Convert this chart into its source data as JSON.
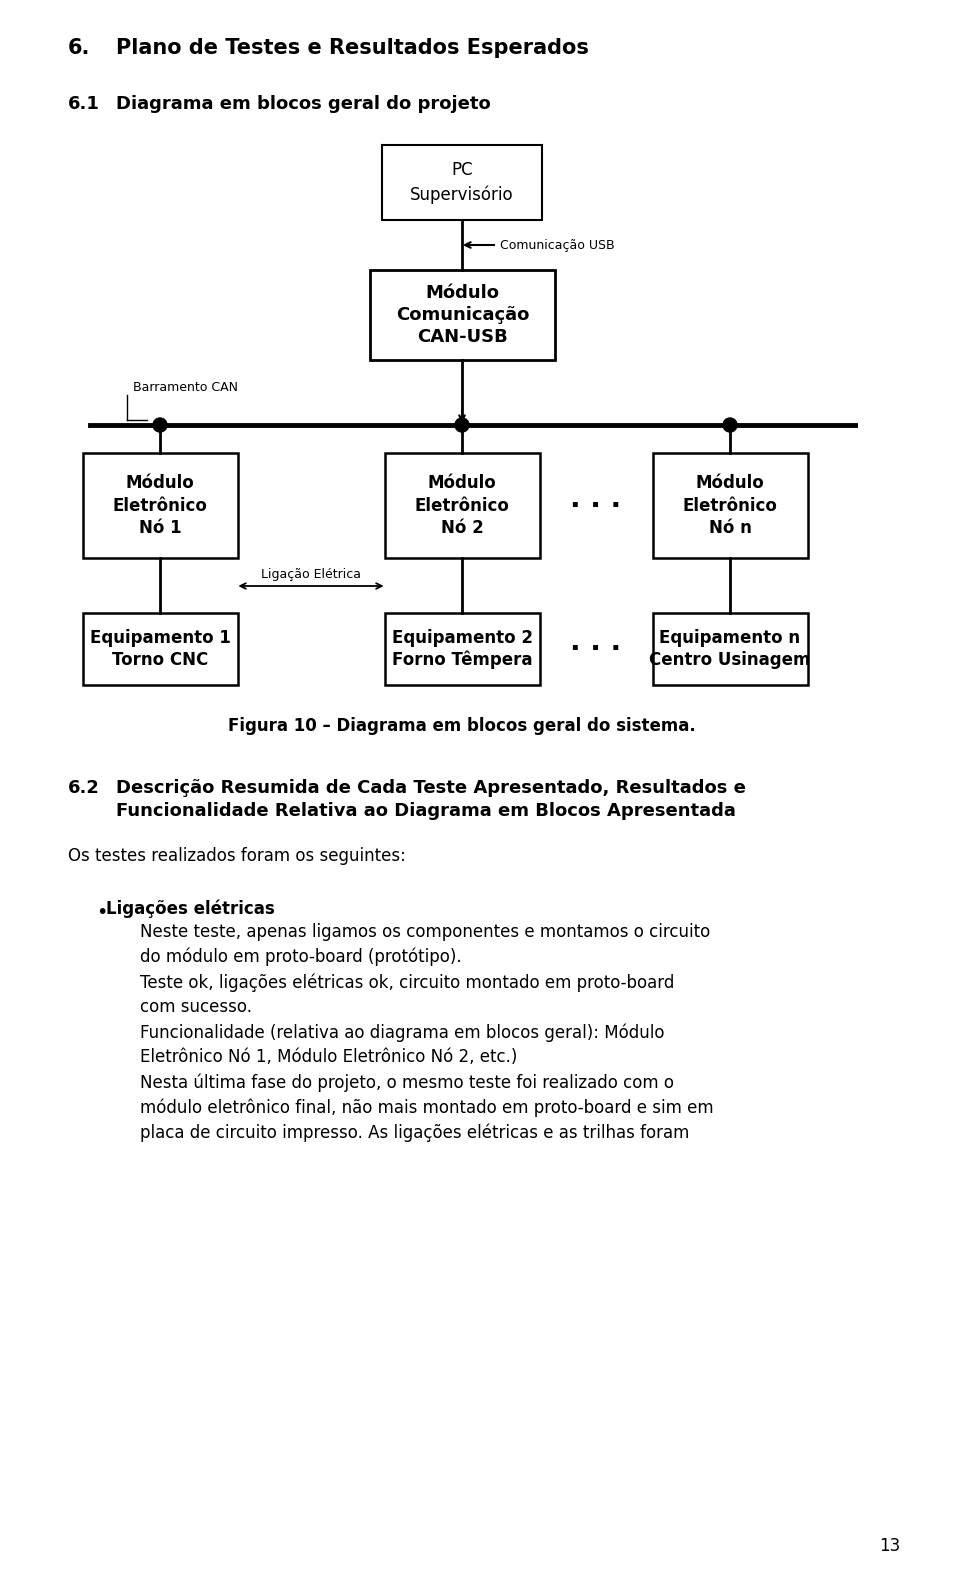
{
  "bg_color": "#ffffff",
  "page_width": 9.6,
  "page_height": 15.71,
  "heading1_text": "6.",
  "heading1_title": "Plano de Testes e Resultados Esperados",
  "heading2_text": "6.1",
  "heading2_title": "Diagrama em blocos geral do projeto",
  "fig_caption": "Figura 10 – Diagrama em blocos geral do sistema.",
  "heading3_text": "6.2",
  "heading3_title_line1": "Descrição Resumida de Cada Teste Apresentado, Resultados e",
  "heading3_title_line2": "Funcionalidade Relativa ao Diagrama em Blocos Apresentada",
  "para1": "Os testes realizados foram os seguintes:",
  "bullet_title": "Ligações elétricas",
  "bullet_text1": "Neste teste, apenas ligamos os componentes e montamos o circuito\ndo módulo em proto-board (protótipo).",
  "bullet_text2": "Teste ok, ligações elétricas ok, circuito montado em proto-board\ncom sucesso.",
  "bullet_text3": "Funcionalidade (relativa ao diagrama em blocos geral): Módulo\nEletrônico Nó 1, Módulo Eletrônico Nó 2, etc.)",
  "bullet_text4": "Nesta última fase do projeto, o mesmo teste foi realizado com o\nmódulo eletrônico final, não mais montado em proto-board e sim em\nplaca de circuito impresso. As ligações elétricas e as trilhas foram",
  "page_number": "13",
  "box_pc": "PC\nSupervisório",
  "box_modulo_com": "Módulo\nComunicação\nCAN-USB",
  "box_no1": "Módulo\nEletrônico\nNó 1",
  "box_no2": "Módulo\nEletrônico\nNó 2",
  "box_non": "Módulo\nEletrônico\nNó n",
  "box_eq1": "Equipamento 1\nTorno CNC",
  "box_eq2": "Equipamento 2\nForno Têmpera",
  "box_eqn": "Equipamento n\nCentro Usinagem",
  "label_usb": "Comunicação USB",
  "label_can": "Barramento CAN",
  "label_eletrica": "Ligação Elétrica",
  "dots": "· · ·"
}
